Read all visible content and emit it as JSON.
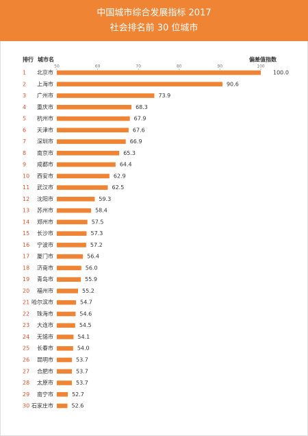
{
  "chart_data": {
    "type": "bar",
    "orientation": "horizontal",
    "title": "中国城市综合发展指标 2017",
    "subtitle": "社会排名前 30 位城市",
    "rank_header": "排行",
    "category_header": "城市名",
    "value_header": "偏差值指数",
    "ranks": [
      1,
      2,
      3,
      4,
      5,
      6,
      7,
      8,
      9,
      10,
      11,
      12,
      13,
      14,
      15,
      16,
      17,
      18,
      19,
      20,
      21,
      22,
      23,
      24,
      25,
      26,
      27,
      28,
      29,
      30
    ],
    "categories": [
      "北京市",
      "上海市",
      "广州市",
      "重庆市",
      "杭州市",
      "天津市",
      "深圳市",
      "南京市",
      "成都市",
      "西安市",
      "武汉市",
      "沈阳市",
      "苏州市",
      "郑州市",
      "长沙市",
      "宁波市",
      "厦门市",
      "济南市",
      "青岛市",
      "福州市",
      "哈尔滨市",
      "珠海市",
      "大连市",
      "无锡市",
      "长春市",
      "昆明市",
      "合肥市",
      "太原市",
      "南宁市",
      "石家庄市"
    ],
    "values": [
      100.0,
      90.6,
      73.9,
      68.3,
      67.9,
      67.6,
      66.9,
      65.3,
      64.4,
      62.9,
      62.5,
      59.3,
      58.4,
      57.5,
      57.3,
      57.2,
      56.4,
      56.0,
      55.9,
      55.2,
      54.7,
      54.6,
      54.5,
      54.1,
      54.0,
      53.7,
      53.7,
      53.7,
      52.7,
      52.6
    ],
    "value_labels": [
      "100.0",
      "90.6",
      "73.9",
      "68.3",
      "67.9",
      "67.6",
      "66.9",
      "65.3",
      "64.4",
      "62.9",
      "62.5",
      "59.3",
      "58.4",
      "57.5",
      "57.3",
      "57.2",
      "56.4",
      "56.0",
      "55.9",
      "55.2",
      "54.7",
      "54.6",
      "54.5",
      "54.1",
      "54.0",
      "53.7",
      "53.7",
      "53.7",
      "52.7",
      "52.6"
    ],
    "color": "#ee8434",
    "xlim": [
      50,
      100
    ],
    "xticks": [
      50,
      60,
      70,
      80,
      90,
      100
    ]
  }
}
